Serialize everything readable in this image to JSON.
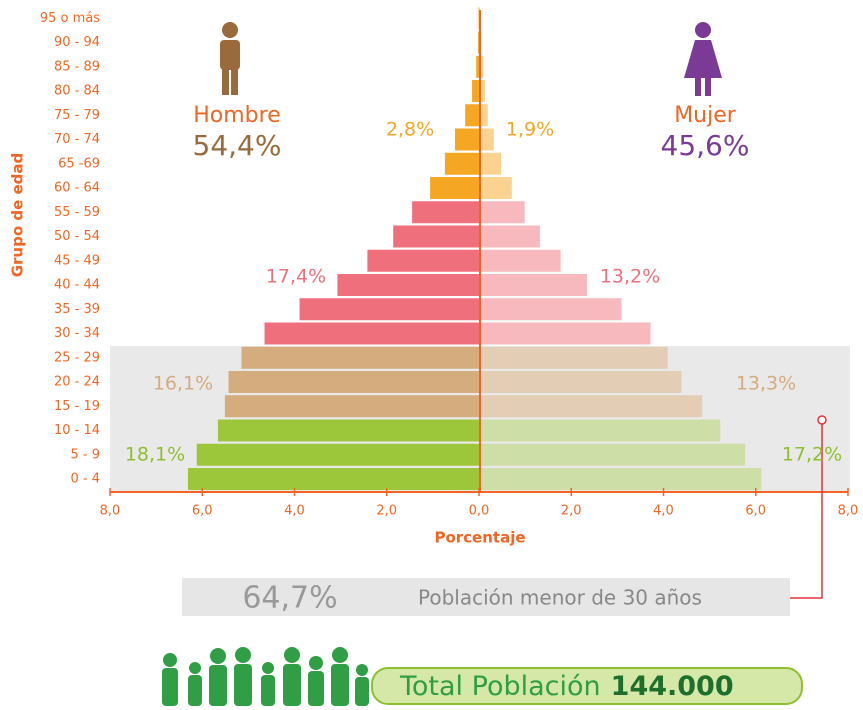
{
  "chart_data": {
    "type": "pyramid",
    "categories": [
      "0 - 4",
      "5 - 9",
      "10 - 14",
      "15 - 19",
      "20 - 24",
      "25 - 29",
      "30 - 34",
      "35 - 39",
      "40 - 44",
      "45 - 49",
      "50 - 54",
      "55 - 59",
      "60 - 64",
      "65 -69",
      "70 - 74",
      "75 - 79",
      "80 - 84",
      "85 - 89",
      "90 - 94",
      "95 o más"
    ],
    "series": [
      {
        "name": "Hombre",
        "total_label": "54,4%",
        "color": "#9a6a3c",
        "side": "left",
        "values": [
          6.31,
          6.12,
          5.66,
          5.51,
          5.43,
          5.15,
          4.65,
          3.89,
          3.07,
          2.42,
          1.86,
          1.45,
          1.06,
          0.74,
          0.52,
          0.3,
          0.15,
          0.06,
          0.02,
          0.01
        ],
        "colors": [
          "#9dc73b",
          "#9dc73b",
          "#9dc73b",
          "#d4ac7e",
          "#d4ac7e",
          "#d4ac7e",
          "#ef6f7c",
          "#ef6f7c",
          "#ef6f7c",
          "#ef6f7c",
          "#ef6f7c",
          "#ef6f7c",
          "#f5a623",
          "#f5a623",
          "#f5a623",
          "#f5a623",
          "#f5a623",
          "#f5a623",
          "#f5a623",
          "#f5a623"
        ],
        "group_labels": [
          "18,1%",
          "16,1%",
          "17,4%",
          "2,8%"
        ]
      },
      {
        "name": "Mujer",
        "total_label": "45,6%",
        "color": "#7b3a96",
        "side": "right",
        "values": [
          6.12,
          5.77,
          5.23,
          4.84,
          4.39,
          4.09,
          3.72,
          3.09,
          2.34,
          1.77,
          1.32,
          0.99,
          0.71,
          0.48,
          0.32,
          0.19,
          0.13,
          0.09,
          0.04,
          0.02
        ],
        "colors": [
          "#cddfa6",
          "#cddfa6",
          "#cddfa6",
          "#e4cdb5",
          "#e4cdb5",
          "#e4cdb5",
          "#f7b9bd",
          "#f7b9bd",
          "#f7b9bd",
          "#f7b9bd",
          "#f7b9bd",
          "#f7b9bd",
          "#fbd28f",
          "#fbd28f",
          "#fbd28f",
          "#fbd28f",
          "#fbd28f",
          "#fbd28f",
          "#fbd28f",
          "#fbd28f"
        ],
        "group_labels": [
          "17,2%",
          "13,3%",
          "13,2%",
          "1,9%"
        ]
      }
    ],
    "group_label_colors": [
      "#8dbf2e",
      "#d4ac7e",
      "#ef6f7c",
      "#f5a623"
    ],
    "xlabel": "Porcentaje",
    "ylabel": "Grupo de edad",
    "xlim": [
      -8,
      8
    ],
    "xticks": [
      {
        "value": -8,
        "label": "8,0"
      },
      {
        "value": -6,
        "label": "6,0"
      },
      {
        "value": -4,
        "label": "4,0"
      },
      {
        "value": -2,
        "label": "2,0"
      },
      {
        "value": 0,
        "label": "0,0"
      },
      {
        "value": 2,
        "label": "2,0"
      },
      {
        "value": 4,
        "label": "4,0"
      },
      {
        "value": 6,
        "label": "6,0"
      },
      {
        "value": 8,
        "label": "8,0"
      }
    ],
    "highlight": {
      "value_label": "64,7%",
      "text": "Población menor de 30 años"
    },
    "total": {
      "text": "Total Población",
      "value_label": "144.000"
    }
  }
}
